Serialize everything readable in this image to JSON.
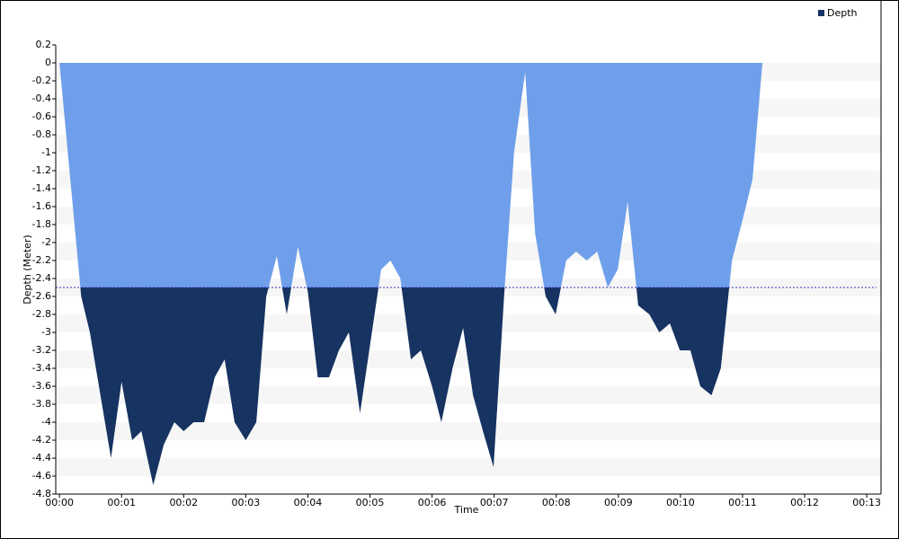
{
  "chart_data": {
    "type": "area",
    "x_label": "Time",
    "y_label": "Depth (Meter)",
    "series": [
      {
        "name": "Depth",
        "color": "#163361",
        "upper_color": "#6f9fea",
        "x": [
          0,
          0.35,
          0.49,
          0.83,
          1.0,
          1.17,
          1.32,
          1.51,
          1.68,
          1.85,
          2.0,
          2.16,
          2.33,
          2.5,
          2.66,
          2.82,
          3.0,
          3.17,
          3.33,
          3.5,
          3.66,
          3.84,
          4.0,
          4.16,
          4.34,
          4.5,
          4.66,
          4.84,
          5.01,
          5.18,
          5.33,
          5.49,
          5.66,
          5.82,
          6.0,
          6.15,
          6.33,
          6.5,
          6.66,
          6.82,
          6.99,
          7.16,
          7.32,
          7.5,
          7.66,
          7.83,
          7.99,
          8.16,
          8.32,
          8.49,
          8.66,
          8.83,
          8.99,
          9.15,
          9.32,
          9.5,
          9.66,
          9.83,
          9.99,
          10.16,
          10.32,
          10.5,
          10.65,
          10.83,
          11.0,
          11.16,
          11.32
        ],
        "values": [
          0,
          -2.6,
          -3.0,
          -4.4,
          -3.55,
          -4.2,
          -4.1,
          -4.7,
          -4.25,
          -4.0,
          -4.1,
          -4.0,
          -4.0,
          -3.5,
          -3.3,
          -4.0,
          -4.2,
          -4.0,
          -2.6,
          -2.15,
          -2.8,
          -2.05,
          -2.55,
          -3.5,
          -3.5,
          -3.2,
          -3.0,
          -3.9,
          -3.1,
          -2.3,
          -2.2,
          -2.4,
          -3.3,
          -3.2,
          -3.6,
          -4.0,
          -3.4,
          -2.95,
          -3.7,
          -4.1,
          -4.5,
          -2.6,
          -1.0,
          -0.1,
          -1.9,
          -2.6,
          -2.8,
          -2.2,
          -2.1,
          -2.2,
          -2.1,
          -2.5,
          -2.3,
          -1.55,
          -2.7,
          -2.8,
          -3.0,
          -2.9,
          -3.2,
          -3.2,
          -3.6,
          -3.7,
          -3.4,
          -2.2,
          -1.75,
          -1.3,
          0
        ]
      }
    ],
    "threshold": -2.5,
    "threshold_color": "#3333cc",
    "xlim": [
      -0.06,
      13.23
    ],
    "xticks": [
      {
        "value": 0,
        "label": "00:00"
      },
      {
        "value": 1,
        "label": "00:01"
      },
      {
        "value": 2,
        "label": "00:02"
      },
      {
        "value": 3,
        "label": "00:03"
      },
      {
        "value": 4,
        "label": "00:04"
      },
      {
        "value": 5,
        "label": "00:05"
      },
      {
        "value": 6,
        "label": "00:06"
      },
      {
        "value": 7,
        "label": "00:07"
      },
      {
        "value": 8,
        "label": "00:08"
      },
      {
        "value": 9,
        "label": "00:09"
      },
      {
        "value": 10,
        "label": "00:10"
      },
      {
        "value": 11,
        "label": "00:11"
      },
      {
        "value": 12,
        "label": "00:12"
      },
      {
        "value": 13,
        "label": "00:13"
      }
    ],
    "ylim": [
      -4.8,
      0.2
    ],
    "yticks": [
      0.2,
      0,
      -0.2,
      -0.4,
      -0.6,
      -0.8,
      -1,
      -1.2,
      -1.4,
      -1.6,
      -1.8,
      -2,
      -2.2,
      -2.4,
      -2.6,
      -2.8,
      -3,
      -3.2,
      -3.4,
      -3.6,
      -3.8,
      -4,
      -4.2,
      -4.4,
      -4.6,
      -4.8
    ],
    "grid": "bands",
    "legend": "top-right"
  }
}
